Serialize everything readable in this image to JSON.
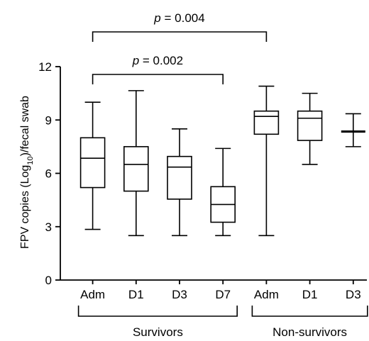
{
  "chart_data": {
    "type": "boxplot",
    "title": "",
    "xlabel": "",
    "ylabel": {
      "prefix": "FPV copies (Log",
      "subscript": "10",
      "suffix": ")/fecal swab"
    },
    "ylim": [
      0,
      12
    ],
    "yticks": [
      "0",
      "3",
      "6",
      "9",
      "12"
    ],
    "grid": false,
    "legend": "none",
    "boxes": [
      {
        "category": "Adm",
        "group": "Survivors",
        "min": 2.85,
        "q1": 5.2,
        "median": 6.85,
        "q3": 8.0,
        "max": 10.0
      },
      {
        "category": "D1",
        "group": "Survivors",
        "min": 2.5,
        "q1": 5.0,
        "median": 6.5,
        "q3": 7.5,
        "max": 10.65
      },
      {
        "category": "D3",
        "group": "Survivors",
        "min": 2.5,
        "q1": 4.55,
        "median": 6.35,
        "q3": 6.95,
        "max": 8.5
      },
      {
        "category": "D7",
        "group": "Survivors",
        "min": 2.5,
        "q1": 3.25,
        "median": 4.25,
        "q3": 5.25,
        "max": 7.4
      },
      {
        "category": "Adm",
        "group": "Non-survivors",
        "min": 2.5,
        "q1": 8.2,
        "median": 9.2,
        "q3": 9.5,
        "max": 10.9
      },
      {
        "category": "D1",
        "group": "Non-survivors",
        "min": 6.5,
        "q1": 7.85,
        "median": 9.1,
        "q3": 9.5,
        "max": 10.5
      },
      {
        "category": "D3",
        "group": "Non-survivors",
        "min": 7.5,
        "q1": 8.35,
        "median": 8.35,
        "q3": 8.35,
        "max": 9.35
      }
    ],
    "groups": [
      {
        "label": "Survivors",
        "first": 0,
        "last": 3
      },
      {
        "label": "Non-survivors",
        "first": 4,
        "last": 6
      }
    ],
    "comparisons": [
      {
        "label_prefix": "p",
        "label_value": " = 0.004",
        "from": 0,
        "to": 4,
        "level": 2
      },
      {
        "label_prefix": "p",
        "label_value": " = 0.002",
        "from": 0,
        "to": 3,
        "level": 1
      }
    ]
  }
}
